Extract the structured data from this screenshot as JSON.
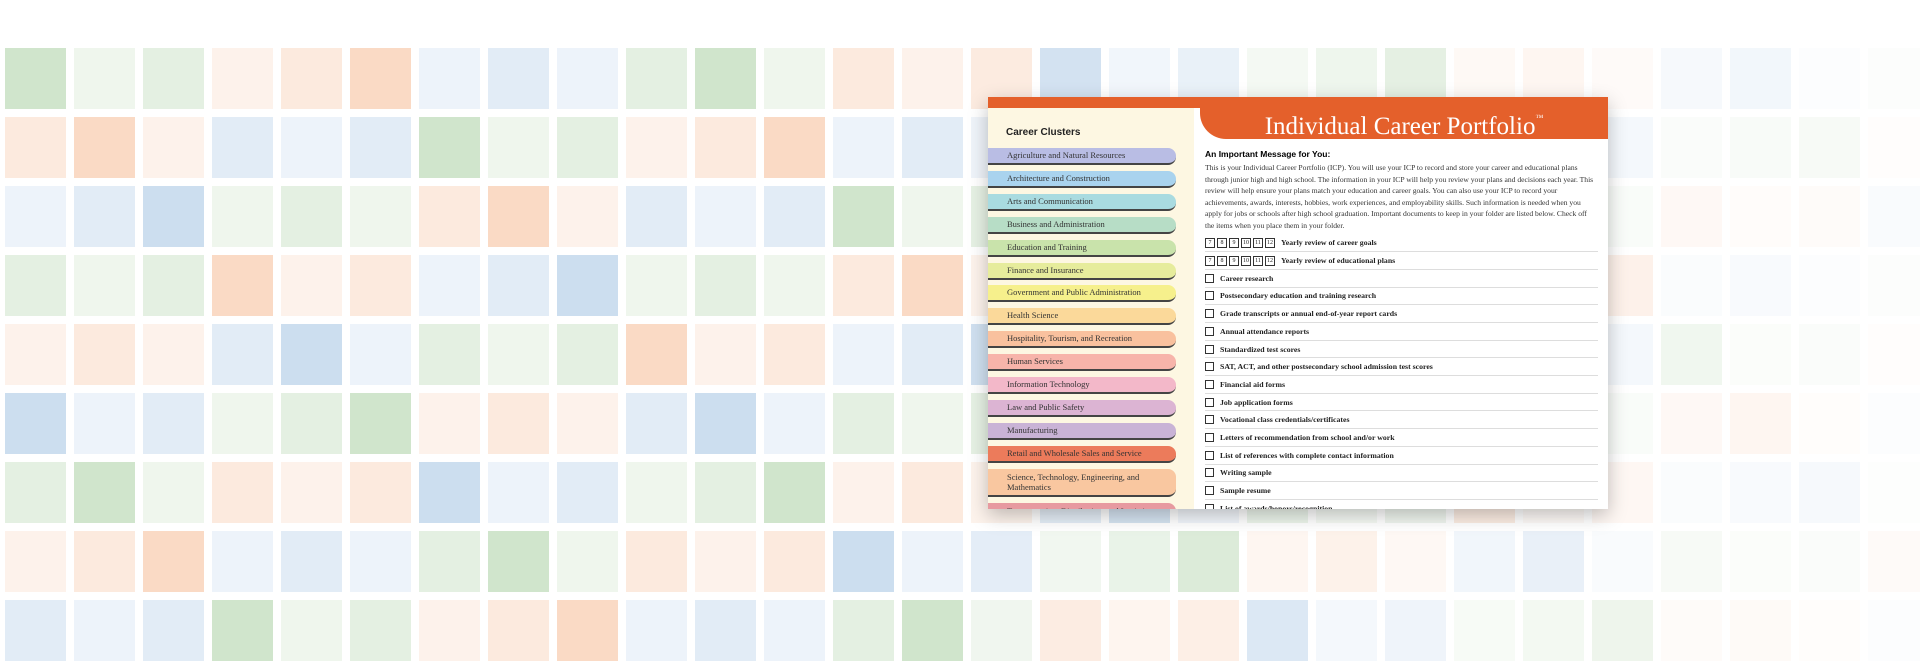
{
  "card": {
    "title": "Individual Career Portfolio",
    "trademark": "™",
    "clusters_heading": "Career Clusters",
    "clusters": [
      {
        "label": "Agriculture and Natural Resources",
        "color": "#b9bde4"
      },
      {
        "label": "Architecture and Construction",
        "color": "#a9d3ee"
      },
      {
        "label": "Arts and Communication",
        "color": "#a9dbe0"
      },
      {
        "label": "Business and Administration",
        "color": "#b7ddc6"
      },
      {
        "label": "Education and Training",
        "color": "#c9e3ab"
      },
      {
        "label": "Finance and Insurance",
        "color": "#e6ec9c"
      },
      {
        "label": "Government and Public Administration",
        "color": "#f6f08c"
      },
      {
        "label": "Health Science",
        "color": "#fbd99a"
      },
      {
        "label": "Hospitality, Tourism, and Recreation",
        "color": "#f9c19e"
      },
      {
        "label": "Human Services",
        "color": "#f7b4aa"
      },
      {
        "label": "Information Technology",
        "color": "#f3b8c9"
      },
      {
        "label": "Law and Public Safety",
        "color": "#dcb4d3"
      },
      {
        "label": "Manufacturing",
        "color": "#c9b3d6"
      },
      {
        "label": "Retail and Wholesale Sales and Service",
        "color": "#ec7b5b"
      },
      {
        "label": "Science, Technology, Engineering, and Mathematics",
        "color": "#f9c7a0"
      },
      {
        "label": "Transportation, Distribution, and Logistics",
        "color": "#e79aa0"
      }
    ],
    "message_heading": "An Important Message for You:",
    "message": "This is your Individual Career Portfolio (ICP). You will use your ICP to record and store your career and educational plans through junior high and high school. The information in your ICP will help you review your plans and decisions each year. This review will help ensure your plans match your education and career goals. You can also use your ICP to record your achievements, awards, interests, hobbies, work experiences, and employability skills. Such information is needed when you apply for jobs or schools after high school graduation. Important documents to keep in your folder are listed below. Check off the items when you place them in your folder.",
    "grades": [
      "7",
      "8",
      "9",
      "10",
      "11",
      "12"
    ],
    "graded_items": [
      "Yearly review of career goals",
      "Yearly review of educational plans"
    ],
    "checklist": [
      "Career research",
      "Postsecondary education and training research",
      "Grade transcripts or annual end-of-year report cards",
      "Annual attendance reports",
      "Standardized test scores",
      "SAT, ACT, and other postsecondary school admission test scores",
      "Financial aid forms",
      "Job application forms",
      "Vocational class credentials/certificates",
      "Letters of recommendation from school and/or work",
      "List of references with complete contact information",
      "Writing sample",
      "Sample resume",
      "List of awards/honors/recognition"
    ]
  }
}
